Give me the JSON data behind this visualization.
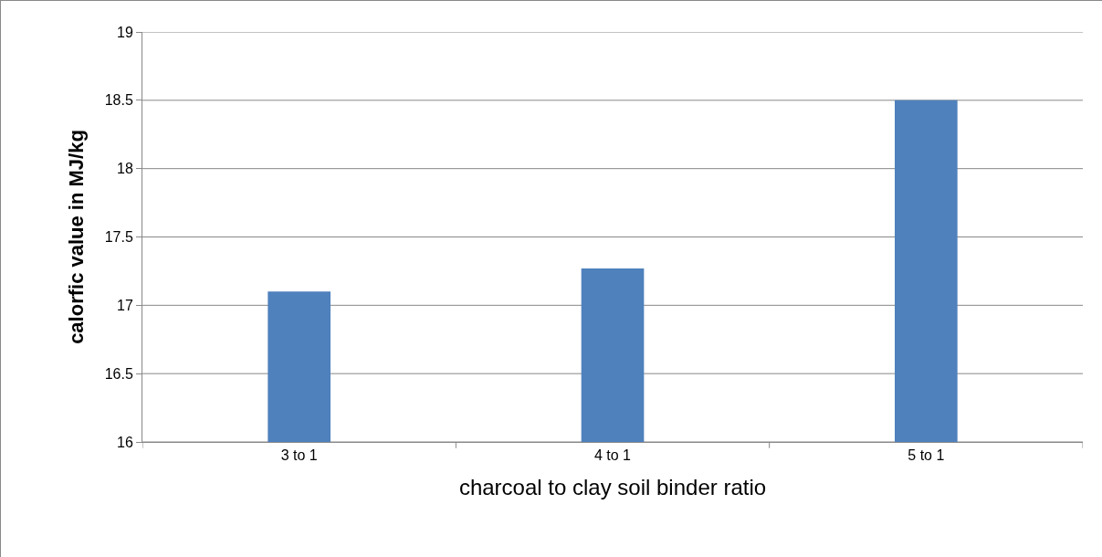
{
  "chart_data": {
    "type": "bar",
    "categories": [
      "3 to 1",
      "4 to 1",
      "5 to 1"
    ],
    "values": [
      17.1,
      17.27,
      18.5
    ],
    "color": "#4f81bd",
    "xlabel": "charcoal to clay soil binder ratio",
    "ylabel": "calorfic value in MJ/kg",
    "ylim": [
      16,
      19
    ],
    "yticks": [
      16,
      16.5,
      17,
      17.5,
      18,
      18.5,
      19
    ],
    "grid": "y"
  }
}
